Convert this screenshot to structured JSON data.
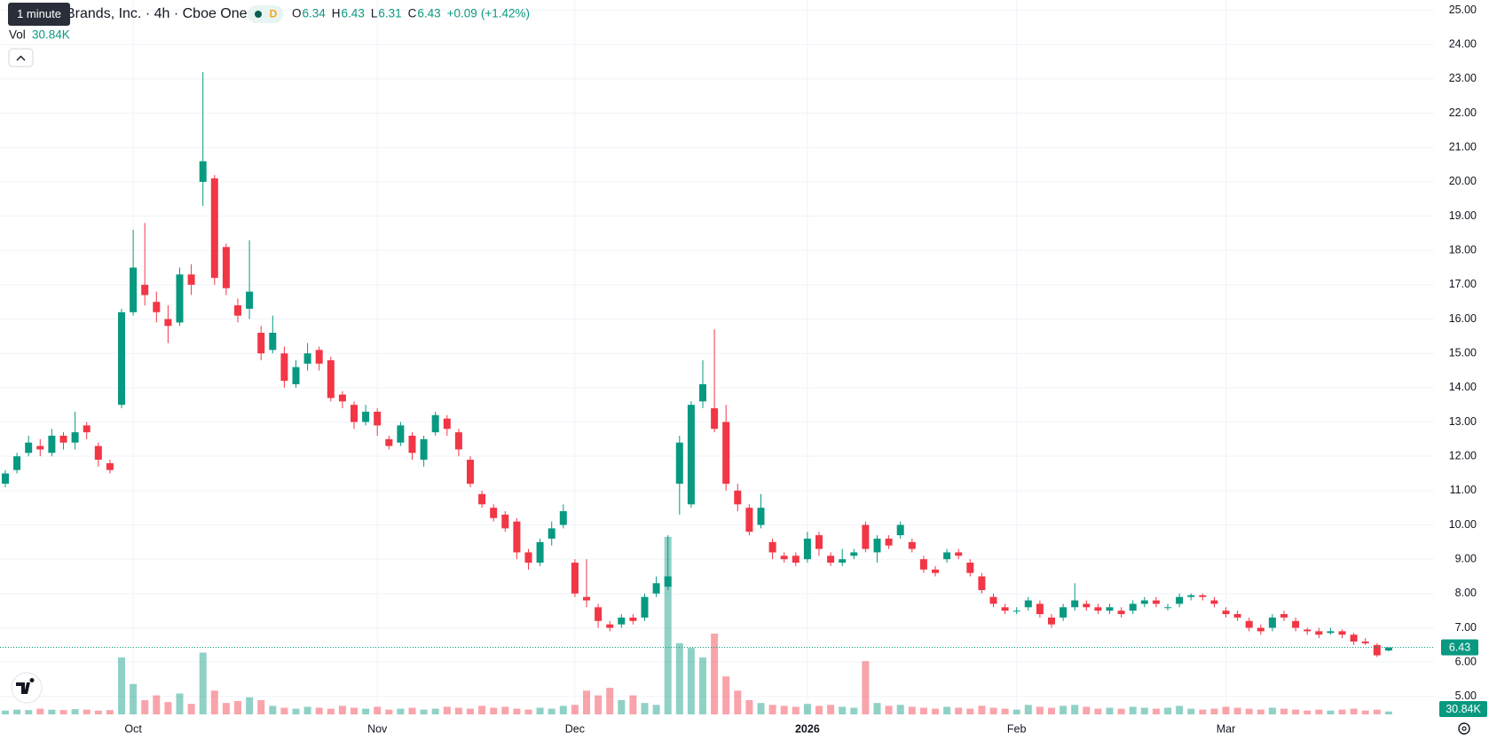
{
  "chart_data": {
    "type": "candlestick",
    "tooltip": "1 minute",
    "title": "Brands, Inc. · 4h · Cboe One",
    "badge": "D",
    "legend": [
      {
        "letter": "O",
        "value": 6.34
      },
      {
        "letter": "H",
        "value": 6.43
      },
      {
        "letter": "L",
        "value": 6.31
      },
      {
        "letter": "C",
        "value": 6.43
      }
    ],
    "change": {
      "value": 0.09,
      "label": "+0.09"
    },
    "change_pct": {
      "value": 1.42,
      "label": "(+1.42%)"
    },
    "vol": {
      "name": "Vol",
      "value": 30.84,
      "label": "30.84K"
    },
    "last_price": 6.43,
    "up_color": "#089981",
    "down_color": "#f23645",
    "grid": true,
    "ylim": [
      4.4,
      25.3
    ],
    "yticks": [
      {
        "value": 5,
        "label": "5.00"
      },
      {
        "value": 6,
        "label": "6.00"
      },
      {
        "value": 7,
        "label": "7.00"
      },
      {
        "value": 8,
        "label": "8.00"
      },
      {
        "value": 9,
        "label": "9.00"
      },
      {
        "value": 10,
        "label": "10.00"
      },
      {
        "value": 11,
        "label": "11.00"
      },
      {
        "value": 12,
        "label": "12.00"
      },
      {
        "value": 13,
        "label": "13.00"
      },
      {
        "value": 14,
        "label": "14.00"
      },
      {
        "value": 15,
        "label": "15.00"
      },
      {
        "value": 16,
        "label": "16.00"
      },
      {
        "value": 17,
        "label": "17.00"
      },
      {
        "value": 18,
        "label": "18.00"
      },
      {
        "value": 19,
        "label": "19.00"
      },
      {
        "value": 20,
        "label": "20.00"
      },
      {
        "value": 21,
        "label": "21.00"
      },
      {
        "value": 22,
        "label": "22.00"
      },
      {
        "value": 23,
        "label": "23.00"
      },
      {
        "value": 24,
        "label": "24.00"
      },
      {
        "value": 25,
        "label": "25.00"
      }
    ],
    "y2lim": [
      0,
      2000
    ],
    "categories": [
      null,
      null,
      null,
      null,
      null,
      null,
      null,
      null,
      null,
      null,
      null,
      "Oct",
      null,
      null,
      null,
      null,
      null,
      null,
      null,
      null,
      null,
      null,
      null,
      null,
      null,
      null,
      null,
      null,
      null,
      null,
      null,
      null,
      "Nov",
      null,
      null,
      null,
      null,
      null,
      null,
      null,
      null,
      null,
      null,
      null,
      null,
      null,
      null,
      null,
      null,
      "Dec",
      null,
      null,
      null,
      null,
      null,
      null,
      null,
      null,
      null,
      null,
      null,
      null,
      null,
      null,
      null,
      null,
      null,
      null,
      null,
      "2026",
      null,
      null,
      null,
      null,
      null,
      null,
      null,
      null,
      null,
      null,
      null,
      null,
      null,
      null,
      null,
      null,
      null,
      "Feb",
      null,
      null,
      null,
      null,
      null,
      null,
      null,
      null,
      null,
      null,
      null,
      null,
      null,
      null,
      null,
      null,
      null,
      "Mar",
      null,
      null,
      null,
      null,
      null,
      null,
      null,
      null,
      null,
      null,
      null,
      null,
      null,
      null
    ],
    "open": [
      11.2,
      11.6,
      12.1,
      12.3,
      12.1,
      12.6,
      12.4,
      12.9,
      12.3,
      11.8,
      13.5,
      16.2,
      17.0,
      16.5,
      16.0,
      15.9,
      17.3,
      20.0,
      20.1,
      18.1,
      16.4,
      16.3,
      15.6,
      15.1,
      15.0,
      14.1,
      14.7,
      15.1,
      14.8,
      13.8,
      13.5,
      13.0,
      13.3,
      12.5,
      12.4,
      12.6,
      11.9,
      12.7,
      13.1,
      12.7,
      11.9,
      10.9,
      10.5,
      10.3,
      10.1,
      9.2,
      8.9,
      9.6,
      10.0,
      8.9,
      7.9,
      7.6,
      7.1,
      7.1,
      7.3,
      7.3,
      8.0,
      8.2,
      11.2,
      10.6,
      13.6,
      13.4,
      13.0,
      11.0,
      10.5,
      10.0,
      9.5,
      9.1,
      9.1,
      9.0,
      9.7,
      9.1,
      8.9,
      9.1,
      10.0,
      9.2,
      9.6,
      9.7,
      9.5,
      9.0,
      8.7,
      9.0,
      9.2,
      8.9,
      8.5,
      7.9,
      7.6,
      7.5,
      7.6,
      7.7,
      7.3,
      7.3,
      7.6,
      7.7,
      7.6,
      7.5,
      7.5,
      7.5,
      7.7,
      7.8,
      7.6,
      7.7,
      7.9,
      7.95,
      7.8,
      7.5,
      7.4,
      7.2,
      7.0,
      7.0,
      7.4,
      7.2,
      6.95,
      6.9,
      6.85,
      6.9,
      6.8,
      6.6,
      6.5,
      6.34
    ],
    "high": [
      11.6,
      12.1,
      12.6,
      12.5,
      12.8,
      12.7,
      13.3,
      13.0,
      12.4,
      11.9,
      16.3,
      18.6,
      18.8,
      16.8,
      16.4,
      17.5,
      17.6,
      23.2,
      20.2,
      18.2,
      16.6,
      18.3,
      15.8,
      16.1,
      15.2,
      14.8,
      15.3,
      15.2,
      14.9,
      13.9,
      13.6,
      13.5,
      13.4,
      12.6,
      13.0,
      12.7,
      12.6,
      13.3,
      13.2,
      12.8,
      12.0,
      11.0,
      10.6,
      10.4,
      10.2,
      9.3,
      9.6,
      10.1,
      10.6,
      9.0,
      9.0,
      7.7,
      7.2,
      7.4,
      7.4,
      8.0,
      8.5,
      9.7,
      12.6,
      13.6,
      14.8,
      15.7,
      13.5,
      11.2,
      10.6,
      10.9,
      9.6,
      9.2,
      9.2,
      9.8,
      9.8,
      9.2,
      9.3,
      9.3,
      10.1,
      9.7,
      9.7,
      10.1,
      9.6,
      9.1,
      8.8,
      9.3,
      9.3,
      9.0,
      8.6,
      8.0,
      7.7,
      7.6,
      7.9,
      7.8,
      7.4,
      7.7,
      8.3,
      7.8,
      7.7,
      7.7,
      7.6,
      7.8,
      7.9,
      7.9,
      7.7,
      8.0,
      8.0,
      8.0,
      7.9,
      7.6,
      7.5,
      7.3,
      7.1,
      7.4,
      7.5,
      7.3,
      7.0,
      7.0,
      7.0,
      6.95,
      6.85,
      6.7,
      6.55,
      6.43
    ],
    "low": [
      11.1,
      11.5,
      12.0,
      12.0,
      12.0,
      12.2,
      12.2,
      12.5,
      11.7,
      11.5,
      13.4,
      16.1,
      16.4,
      15.9,
      15.3,
      15.8,
      16.7,
      19.3,
      17.0,
      16.7,
      15.9,
      16.0,
      14.8,
      15.0,
      14.0,
      14.0,
      14.5,
      14.5,
      13.6,
      13.4,
      12.8,
      12.9,
      12.6,
      12.2,
      12.3,
      11.9,
      11.7,
      12.6,
      12.6,
      12.0,
      11.1,
      10.5,
      10.1,
      9.8,
      9.0,
      8.7,
      8.8,
      9.4,
      9.9,
      7.9,
      7.6,
      7.0,
      6.9,
      7.0,
      7.1,
      7.2,
      7.9,
      8.1,
      10.3,
      10.5,
      13.4,
      12.7,
      11.0,
      10.4,
      9.7,
      9.9,
      9.0,
      8.9,
      8.8,
      8.9,
      9.1,
      8.8,
      8.8,
      9.0,
      9.2,
      8.9,
      9.3,
      9.6,
      9.2,
      8.6,
      8.5,
      8.9,
      9.0,
      8.5,
      8.0,
      7.6,
      7.4,
      7.4,
      7.5,
      7.3,
      7.0,
      7.2,
      7.5,
      7.5,
      7.4,
      7.4,
      7.3,
      7.4,
      7.6,
      7.6,
      7.5,
      7.6,
      7.8,
      7.8,
      7.6,
      7.3,
      7.2,
      6.9,
      6.8,
      6.9,
      7.2,
      6.9,
      6.8,
      6.7,
      6.8,
      6.7,
      6.5,
      6.5,
      6.15,
      6.31
    ],
    "close": [
      11.5,
      12.0,
      12.4,
      12.2,
      12.6,
      12.4,
      12.7,
      12.7,
      11.9,
      11.6,
      16.2,
      17.5,
      16.7,
      16.2,
      15.8,
      17.3,
      17.0,
      20.6,
      17.2,
      16.9,
      16.1,
      16.8,
      15.0,
      15.6,
      14.2,
      14.6,
      15.0,
      14.7,
      13.7,
      13.6,
      13.0,
      13.3,
      12.9,
      12.3,
      12.9,
      12.1,
      12.5,
      13.2,
      12.8,
      12.2,
      11.2,
      10.6,
      10.2,
      9.9,
      9.2,
      8.9,
      9.5,
      9.9,
      10.4,
      8.0,
      7.8,
      7.2,
      7.0,
      7.3,
      7.2,
      7.9,
      8.3,
      8.5,
      12.4,
      13.5,
      14.1,
      12.8,
      11.2,
      10.6,
      9.8,
      10.5,
      9.2,
      9.0,
      8.9,
      9.6,
      9.3,
      8.9,
      9.0,
      9.2,
      9.3,
      9.6,
      9.4,
      10.0,
      9.3,
      8.7,
      8.6,
      9.2,
      9.1,
      8.6,
      8.1,
      7.7,
      7.5,
      7.5,
      7.8,
      7.4,
      7.1,
      7.6,
      7.8,
      7.6,
      7.5,
      7.6,
      7.4,
      7.7,
      7.8,
      7.7,
      7.6,
      7.9,
      7.95,
      7.9,
      7.7,
      7.4,
      7.3,
      7.0,
      6.9,
      7.3,
      7.3,
      7.0,
      6.9,
      6.8,
      6.9,
      6.8,
      6.6,
      6.55,
      6.2,
      6.43
    ],
    "volume": [
      40,
      50,
      45,
      60,
      50,
      45,
      55,
      50,
      40,
      45,
      600,
      320,
      150,
      200,
      130,
      220,
      110,
      650,
      250,
      120,
      140,
      180,
      150,
      90,
      70,
      60,
      80,
      70,
      60,
      90,
      70,
      60,
      80,
      50,
      60,
      70,
      50,
      60,
      80,
      70,
      60,
      90,
      70,
      80,
      60,
      50,
      70,
      60,
      90,
      100,
      250,
      200,
      280,
      150,
      200,
      120,
      100,
      1870,
      750,
      700,
      600,
      850,
      400,
      250,
      150,
      120,
      100,
      90,
      80,
      110,
      90,
      100,
      80,
      70,
      560,
      120,
      90,
      100,
      80,
      70,
      60,
      80,
      70,
      60,
      90,
      70,
      60,
      50,
      100,
      80,
      70,
      90,
      100,
      80,
      60,
      70,
      60,
      80,
      70,
      60,
      70,
      90,
      60,
      50,
      60,
      80,
      70,
      60,
      50,
      70,
      60,
      50,
      40,
      50,
      40,
      50,
      60,
      40,
      50,
      30.84
    ]
  }
}
